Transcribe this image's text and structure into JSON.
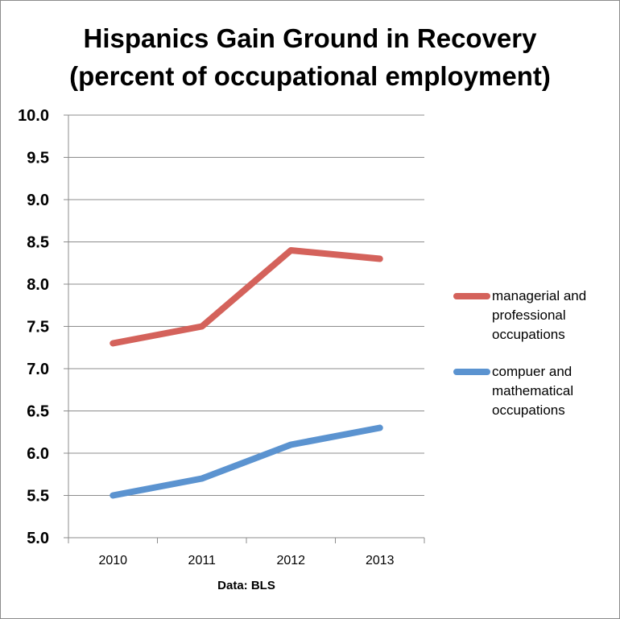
{
  "chart_data": {
    "type": "line",
    "title_lines": [
      "Hispanics Gain Ground in Recovery",
      "(percent of occupational employment)"
    ],
    "xlabel": "Data: BLS",
    "ylabel": "",
    "categories": [
      "2010",
      "2011",
      "2012",
      "2013"
    ],
    "ylim": [
      5.0,
      10.0
    ],
    "yticks": [
      "5.0",
      "5.5",
      "6.0",
      "6.5",
      "7.0",
      "7.5",
      "8.0",
      "8.5",
      "9.0",
      "9.5",
      "10.0"
    ],
    "grid": true,
    "legend_position": "right",
    "series": [
      {
        "name_lines": [
          "managerial and",
          "professional",
          "occupations"
        ],
        "values": [
          7.3,
          7.5,
          8.4,
          8.3
        ],
        "color": "#d4625b"
      },
      {
        "name_lines": [
          "compuer and",
          "mathematical",
          "occupations"
        ],
        "values": [
          5.5,
          5.7,
          6.1,
          6.3
        ],
        "color": "#5b93d0"
      }
    ]
  }
}
